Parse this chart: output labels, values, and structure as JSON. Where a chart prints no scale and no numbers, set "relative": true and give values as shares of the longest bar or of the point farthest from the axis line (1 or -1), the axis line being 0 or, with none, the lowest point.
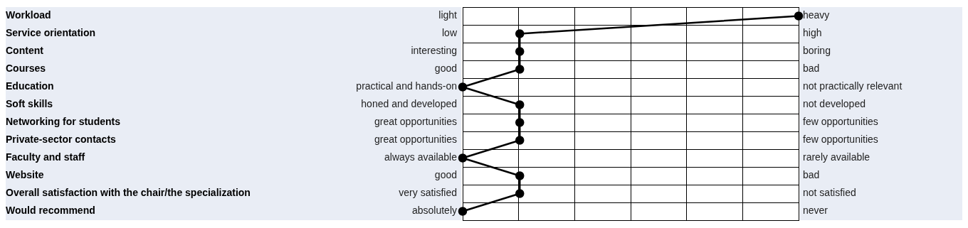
{
  "chart_data": {
    "type": "line",
    "orientation": "horizontal",
    "relative": true,
    "grid": true,
    "tick_labels": "y",
    "marker": "circle",
    "line_style": "solid",
    "categories": [
      "Workload",
      "Service orientation",
      "Content",
      "Courses",
      "Education",
      "Soft skills",
      "Networking for students",
      "Private-sector contacts",
      "Faculty and staff",
      "Website",
      "Overall satisfaction with the chair/the specialization",
      "Would recommend"
    ],
    "series": [
      {
        "color": "#000000",
        "values": [
          1,
          0.17,
          0.17,
          0.17,
          0,
          0.17,
          0.17,
          0.17,
          0,
          0.17,
          0.17,
          0
        ]
      }
    ],
    "annotations": [
      "light",
      "heavy",
      "low",
      "high",
      "interesting",
      "boring",
      "good",
      "bad",
      "practical and hands-on",
      "not practically relevant",
      "honed and developed",
      "not developed",
      "great opportunities",
      "few opportunities",
      "great opportunities",
      "few opportunities",
      "always available",
      "rarely available",
      "good",
      "bad",
      "very satisfied",
      "not satisfied",
      "absolutely",
      "never"
    ]
  }
}
